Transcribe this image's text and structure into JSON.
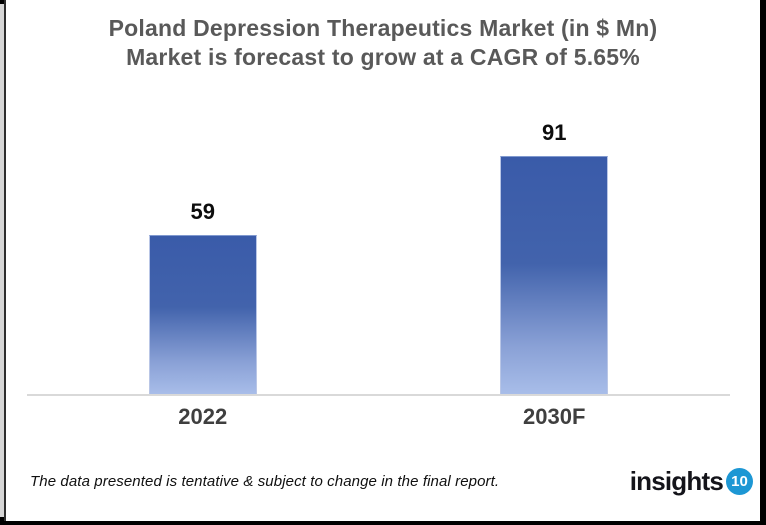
{
  "chart_data": {
    "type": "bar",
    "title": "Poland Depression Therapeutics Market (in $ Mn)",
    "subtitle": "Market is forecast to grow at a CAGR of 5.65%",
    "categories": [
      "2022",
      "2030F"
    ],
    "values": [
      59,
      91
    ],
    "xlabel": "",
    "ylabel": "",
    "ylim": [
      0,
      102
    ],
    "grid": false,
    "legend": false,
    "data_labels_shown": true,
    "bar_gradient_top": "#3A5BA9",
    "bar_gradient_bottom": "#A8BDE9",
    "axis_line_color": "#D9D9D9",
    "title_color": "#595959",
    "value_label_color": "#0D0D0D",
    "category_label_color": "#3F3F3F"
  },
  "footer": {
    "disclaimer": "The data presented is tentative & subject to change in the final report.",
    "logo_text": "insights",
    "logo_badge": "10",
    "logo_badge_color": "#1D97D4"
  }
}
